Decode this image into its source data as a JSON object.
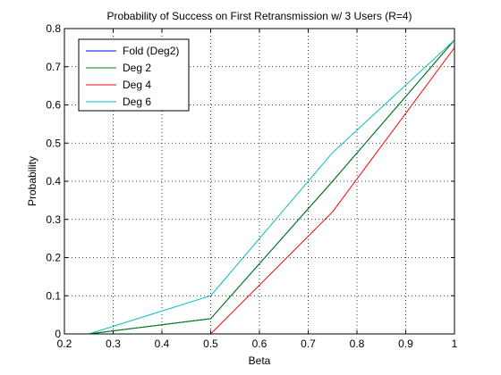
{
  "chart_data": {
    "type": "line",
    "title": "Probability of Success on First Retransmission w/ 3 Users (R=4)",
    "xlabel": "Beta",
    "ylabel": "Probability",
    "xlim": [
      0.2,
      1
    ],
    "ylim": [
      0,
      0.8
    ],
    "xticks": [
      "0.2",
      "0.3",
      "0.4",
      "0.5",
      "0.6",
      "0.7",
      "0.8",
      "0.9",
      "1"
    ],
    "yticks": [
      "0",
      "0.1",
      "0.2",
      "0.3",
      "0.4",
      "0.5",
      "0.6",
      "0.7",
      "0.8"
    ],
    "xtick_values": [
      0.2,
      0.3,
      0.4,
      0.5,
      0.6,
      0.7,
      0.8,
      0.9,
      1.0
    ],
    "ytick_values": [
      0,
      0.1,
      0.2,
      0.3,
      0.4,
      0.5,
      0.6,
      0.7,
      0.8
    ],
    "grid": true,
    "legend_position": "top-left",
    "series": [
      {
        "name": "Fold (Deg2)",
        "color": "#0000ff",
        "x": [
          0.25,
          0.5,
          0.75,
          1.0
        ],
        "y": [
          0.0,
          0.04,
          0.4,
          0.77
        ]
      },
      {
        "name": "Deg 2",
        "color": "#008000",
        "x": [
          0.25,
          0.5,
          0.75,
          1.0
        ],
        "y": [
          0.0,
          0.04,
          0.4,
          0.77
        ]
      },
      {
        "name": "Deg 4",
        "color": "#ff0000",
        "x": [
          0.5,
          0.75,
          1.0
        ],
        "y": [
          0.0,
          0.32,
          0.75
        ]
      },
      {
        "name": "Deg 6",
        "color": "#00bfbf",
        "x": [
          0.25,
          0.5,
          0.75,
          1.0
        ],
        "y": [
          0.0,
          0.1,
          0.475,
          0.77
        ]
      }
    ]
  }
}
